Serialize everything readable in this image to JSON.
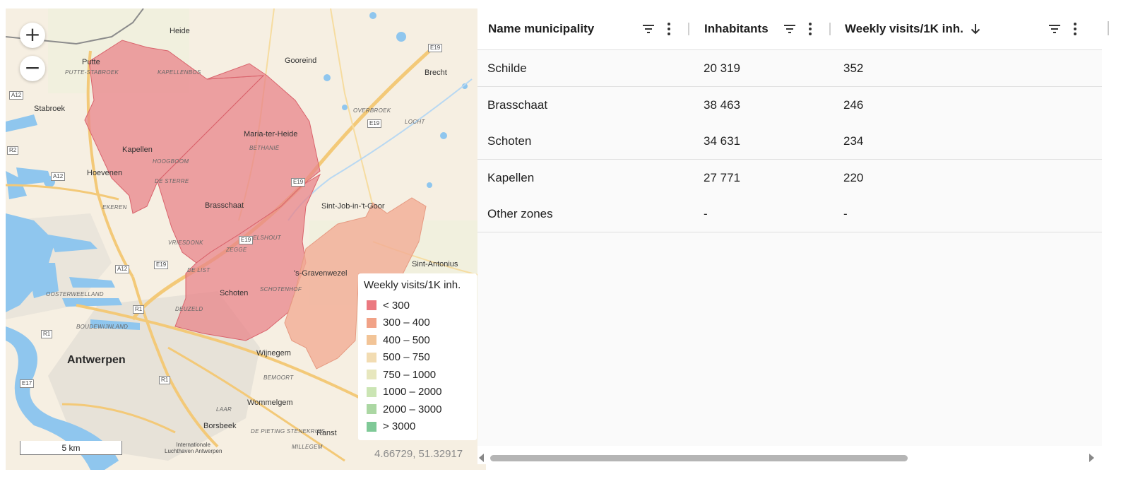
{
  "map": {
    "zoom_in_label": "+",
    "zoom_out_label": "−",
    "places": {
      "antwerpen": "Antwerpen",
      "brasschaat": "Brasschaat",
      "kapellen": "Kapellen",
      "schoten": "Schoten",
      "stabroek": "Stabroek",
      "hoevenen": "Hoevenen",
      "putte": "Putte",
      "heide": "Heide",
      "gooreind": "Gooreind",
      "brecht": "Brecht",
      "maria_ter_heide": "Maria-ter-Heide",
      "sint_job": "Sint-Job-in-'t-Goor",
      "s_gravenwezel": "'s-Gravenwezel",
      "sint_antonius": "Sint-Antonius",
      "wijnegem": "Wijnegem",
      "wommelgem": "Wommelgem",
      "borsbeek": "Borsbeek",
      "ransst": "Ranst",
      "airport": "Internationale\nLuchthaven Antwerpen",
      "putte_stabroek": "PUTTE-STABROEK",
      "kapellenbos": "KAPELLENBOS",
      "hoogboom": "HOOGBOOM",
      "de_sterre": "DE STERRE",
      "bethanie": "BETHANIË",
      "overbroek": "OVERBROEK",
      "locht": "LOCHT",
      "elshout": "ELSHOUT",
      "zegge": "ZEGGE",
      "vriesdonk": "VRIESDONK",
      "de_list": "DE LIST",
      "schotenhof": "SCHOTENHOF",
      "deuzeld": "DEUZELD",
      "ekeren": "EKEREN",
      "oosterweel": "OOSTERWEELLAND",
      "boudewijn": "BOUDEWIJNLAND",
      "bemoort": "BEMOORT",
      "de_pieting": "DE PIETING  STENEKRUIS",
      "millegem": "MILLEGEM",
      "laar": "LAAR"
    },
    "roads": [
      "E19",
      "E19",
      "E19",
      "E19",
      "A12",
      "A12",
      "A12",
      "R1",
      "R1",
      "R1",
      "E17",
      "E19",
      "R2"
    ],
    "legend": {
      "title": "Weekly visits/1K inh.",
      "items": [
        {
          "label": "< 300",
          "color": "#e8848a"
        },
        {
          "label": "300 – 400",
          "color": "#f2ad95"
        },
        {
          "label": "400 – 500",
          "color": "#f8cfa8"
        },
        {
          "label": "500 – 750",
          "color": "#fbe8c3"
        },
        {
          "label": "750 – 1000",
          "color": "#f3f3cf"
        },
        {
          "label": "1000 – 2000",
          "color": "#d9efc4"
        },
        {
          "label": "2000 – 3000",
          "color": "#b9e0b2"
        },
        {
          "label": "> 3000",
          "color": "#8fd0a4"
        }
      ]
    },
    "scale_label": "5 km",
    "coords": "4.66729, 51.32917"
  },
  "table": {
    "columns": [
      {
        "label": "Name municipality",
        "sort": ""
      },
      {
        "label": "Inhabitants",
        "sort": ""
      },
      {
        "label": "Weekly visits/1K inh.",
        "sort": "descending"
      }
    ],
    "rows": [
      {
        "name": "Schilde",
        "inhabitants": "20 319",
        "visits": "352"
      },
      {
        "name": "Brasschaat",
        "inhabitants": "38 463",
        "visits": "246"
      },
      {
        "name": "Schoten",
        "inhabitants": "34 631",
        "visits": "234"
      },
      {
        "name": "Kapellen",
        "inhabitants": "27 771",
        "visits": "220"
      },
      {
        "name": "Other zones",
        "inhabitants": "-",
        "visits": "-"
      }
    ]
  },
  "colors": {
    "region_low": "#e8848a",
    "region_mid": "#f2ad95",
    "water": "#8fc6ee",
    "scrollbar_thumb": "#b5b5b5"
  }
}
